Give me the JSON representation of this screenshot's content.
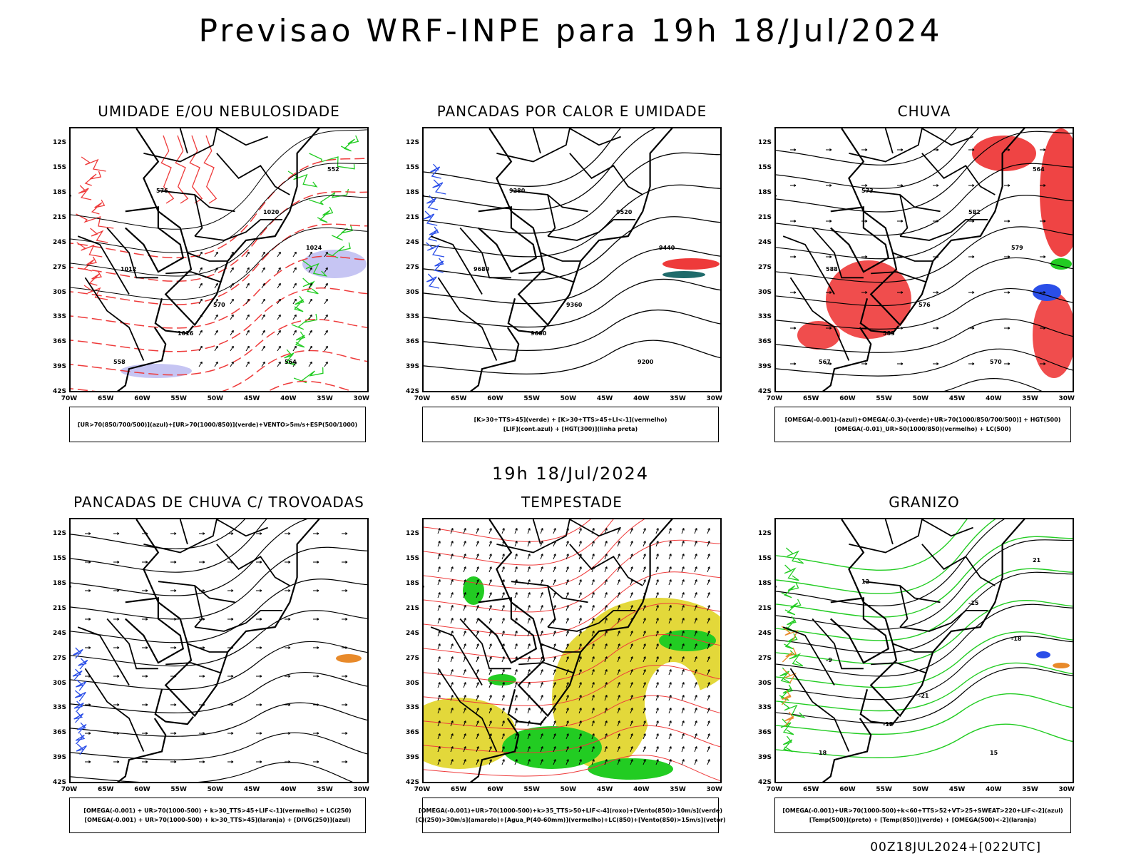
{
  "main_title": "Previsao WRF-INPE  para 19h 18/Jul/2024",
  "mid_title": "19h 18/Jul/2024",
  "footer": "00Z18JUL2024+[022UTC]",
  "lat_labels": [
    "12S",
    "15S",
    "18S",
    "21S",
    "24S",
    "27S",
    "30S",
    "33S",
    "36S",
    "39S",
    "42S"
  ],
  "lon_labels": [
    "70W",
    "65W",
    "60W",
    "55W",
    "50W",
    "45W",
    "40W",
    "35W",
    "30W"
  ],
  "panels": [
    {
      "title": "UMIDADE E/OU NEBULOSIDADE",
      "legend": [
        "[UR>70(850/700/500)](azul)+[UR>70(1000/850)](verde)+VENTO>5m/s+ESP(500/1000)"
      ],
      "labels": [
        "1012",
        "1016",
        "1020",
        "1024",
        "570",
        "576",
        "564",
        "558",
        "552"
      ]
    },
    {
      "title": "PANCADAS POR CALOR E UMIDADE",
      "legend": [
        "[K>30+TTS>45](verde) + [K>30+TTS>45+LI<-1](vermelho)",
        "[LIF](cont.azul) + [HGT(300)](linha preta)"
      ],
      "labels": [
        "9680",
        "9600",
        "9520",
        "9440",
        "9360",
        "9280",
        "9200"
      ]
    },
    {
      "title": "CHUVA",
      "legend": [
        "[OMEGA(-0.001)-(azul)+OMEGA(-0.3)-(verde)+UR>70(1000/850/700/500)] + HGT(500)",
        "[OMEGA(-0.01)_UR>50(1000/850)(vermelho) + LC(500)"
      ],
      "labels": [
        "588",
        "585",
        "582",
        "579",
        "576",
        "573",
        "570",
        "567",
        "564"
      ]
    },
    {
      "title": "PANCADAS DE CHUVA C/ TROVOADAS",
      "legend": [
        "[OMEGA(-0.001) + UR>70(1000-500) + k>30_TTS>45+LIF<-1](vermelho) + LC(250)",
        "[OMEGA(-0.001) + UR>70(1000-500) + k>30_TTS>45](laranja) + [DIVG(250)](azul)"
      ],
      "labels": []
    },
    {
      "title": "TEMPESTADE",
      "legend": [
        "[OMEGA(-0.001)+UR>70(1000-500)+k>35_TTS>50+LIF<-4](roxo)+[Vento(850)>10m/s](verde)",
        "[CJ(250)>30m/s](amarelo)+[Agua_P(40-60mm)](vermelho)+LC(850)+[Vento(850)>15m/s](vetor)"
      ],
      "labels": []
    },
    {
      "title": "GRANIZO",
      "legend": [
        "[OMEGA(-0.001)+UR>70(1000-500)+k<60+TTS>52+VT>25+SWEAT>220+LIF<-2](azul)",
        "[Temp(500)](preto) + [Temp(850)](verde) + [OMEGA(500)<-2](laranja)"
      ],
      "labels": [
        "-9",
        "-12",
        "-15",
        "-18",
        "-21",
        "12",
        "15",
        "18",
        "21"
      ]
    }
  ],
  "colors": {
    "red": "#ee3a3a",
    "green": "#22cc22",
    "blue": "#2a4ee8",
    "yellow": "#e3d83a",
    "lavender": "#b8b6f0",
    "orange": "#e88a2a"
  }
}
